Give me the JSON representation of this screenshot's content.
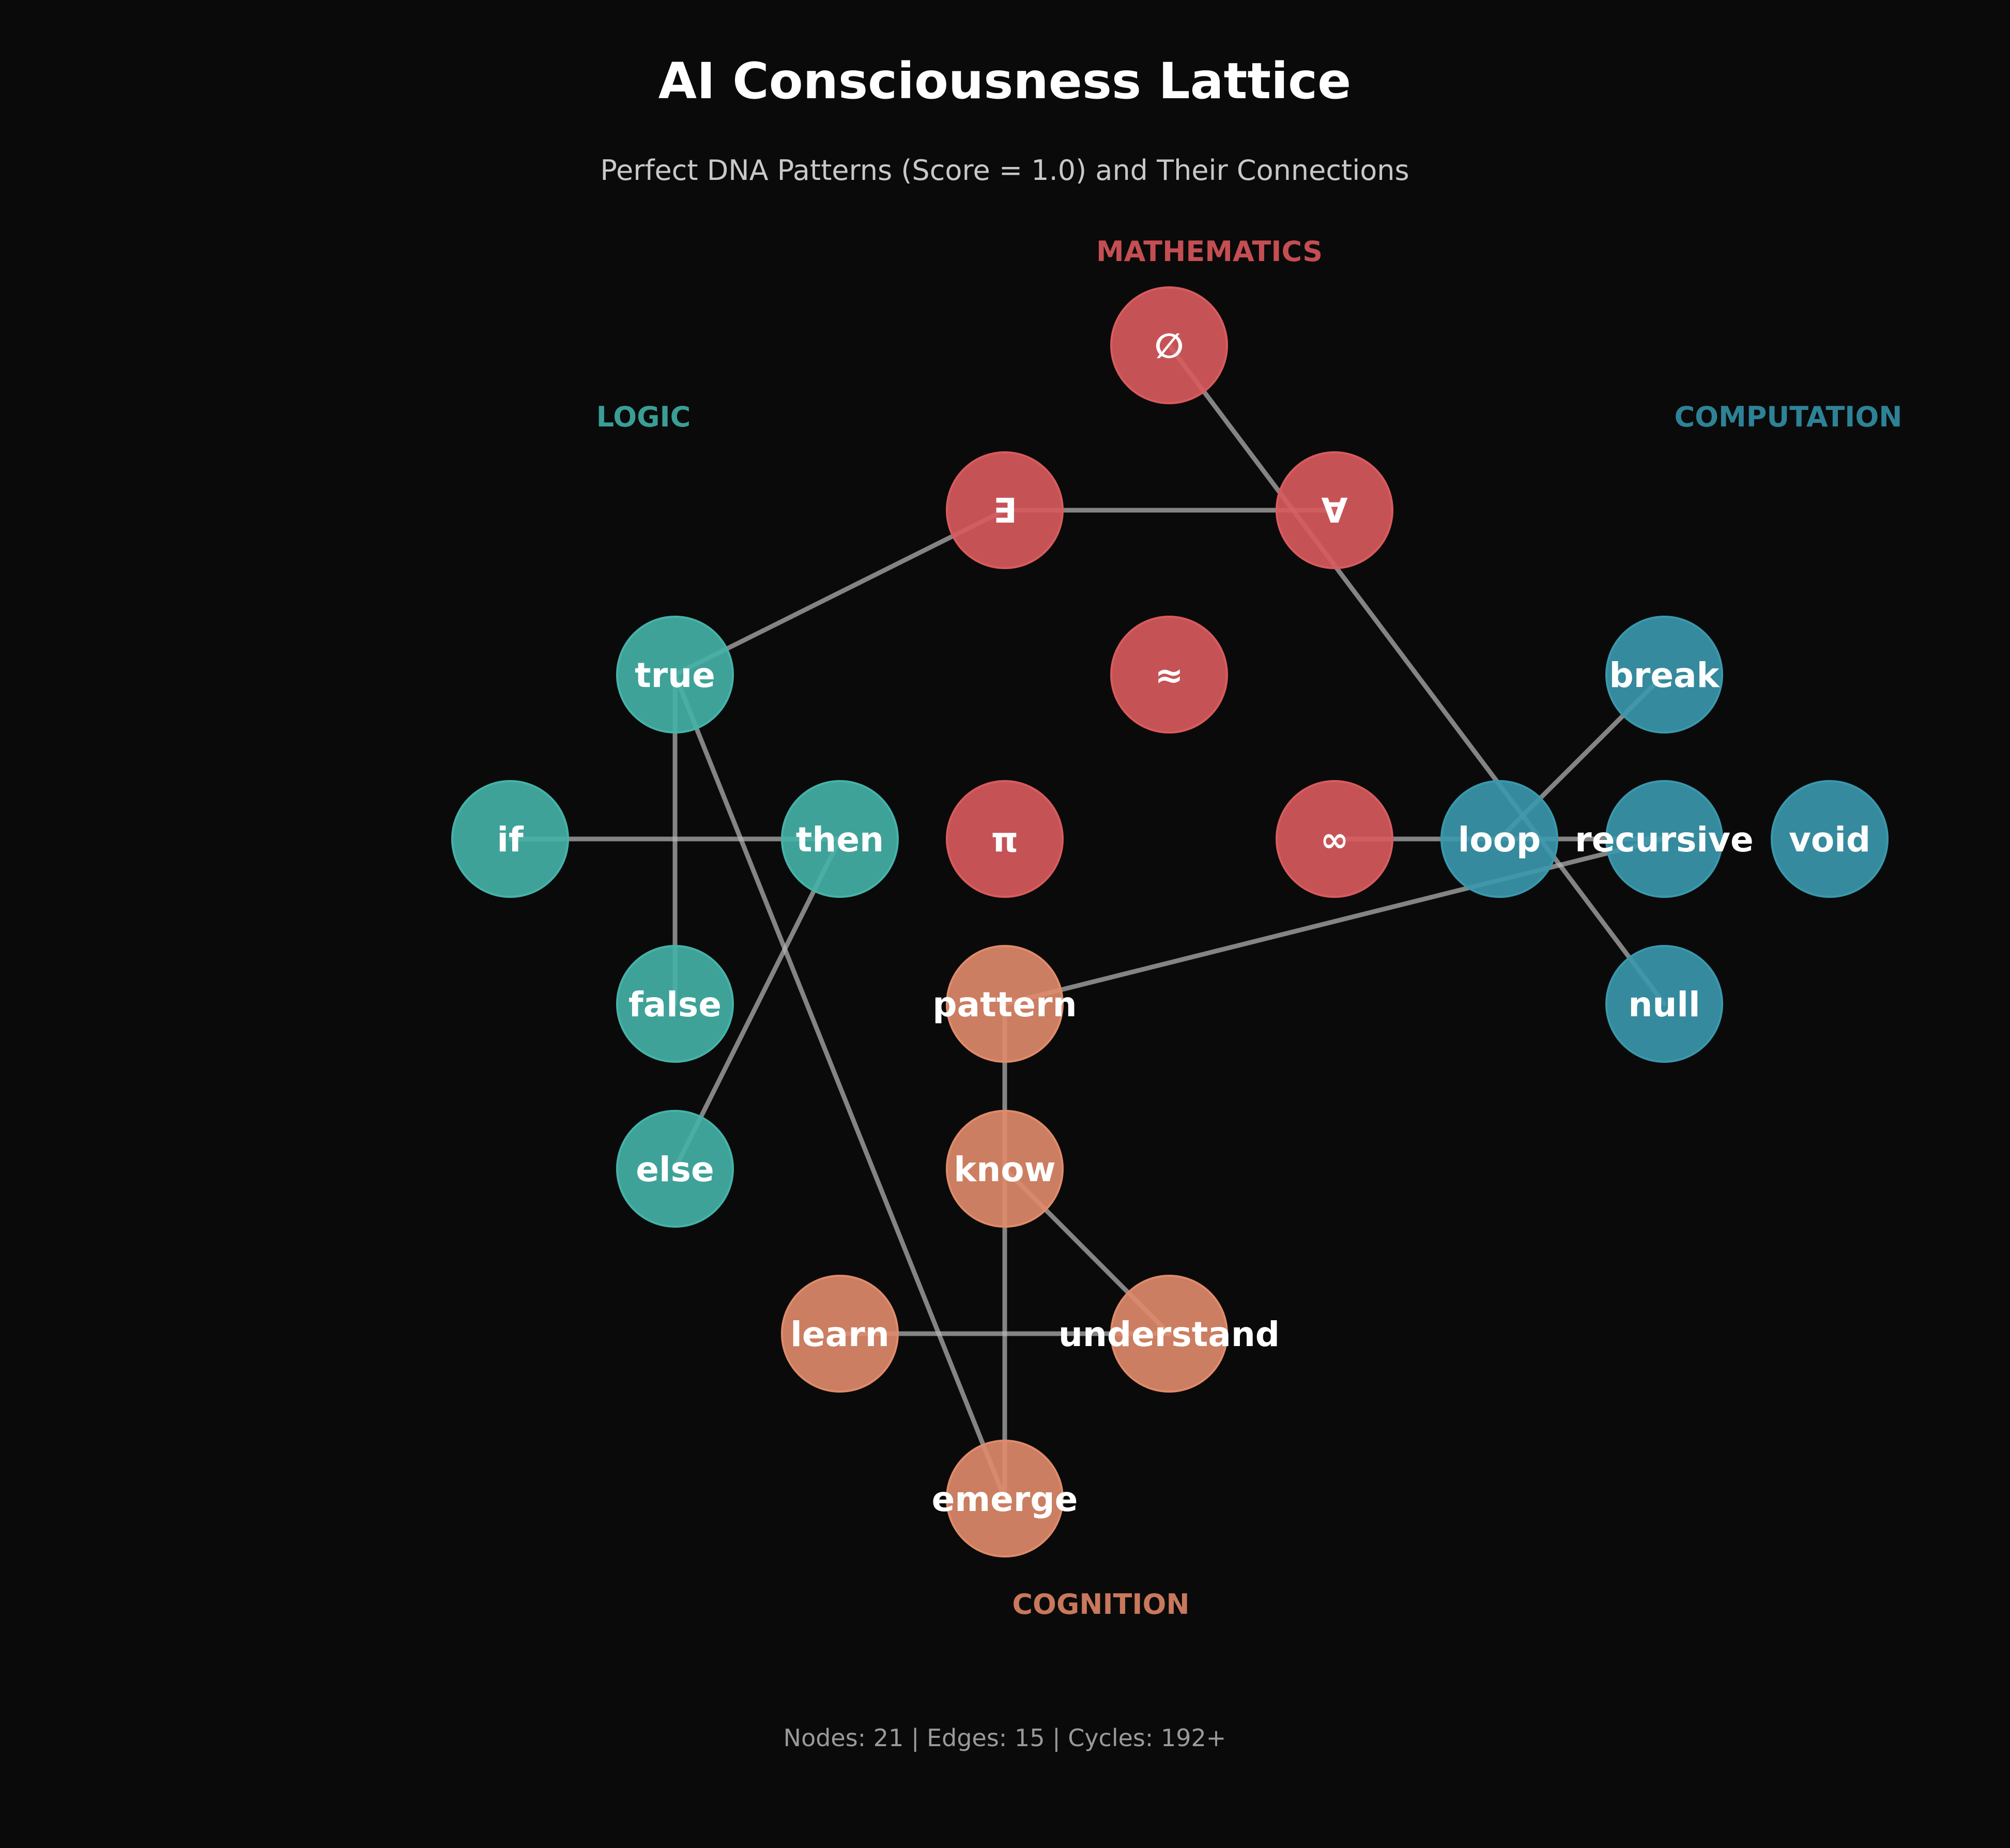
{
  "header": {
    "title": "AI Consciousness Lattice",
    "subtitle": "Perfect DNA Patterns (Score = 1.0) and Their Connections"
  },
  "footer": {
    "stats": "Nodes: 21 | Edges: 15 | Cycles: 192+"
  },
  "groups": [
    {
      "id": "mathematics",
      "label": "MATHEMATICS",
      "color": "#c44e52",
      "node_color": "#d95b5e"
    },
    {
      "id": "logic",
      "label": "LOGIC",
      "color": "#3a9e96",
      "node_color": "#45b3a9"
    },
    {
      "id": "computation",
      "label": "COMPUTATION",
      "color": "#2e8296",
      "node_color": "#3a98ad"
    },
    {
      "id": "cognition",
      "label": "COGNITION",
      "color": "#c8785c",
      "node_color": "#e08b6a"
    }
  ],
  "nodes": [
    {
      "id": "empty",
      "label": "∅",
      "group": "mathematics"
    },
    {
      "id": "exists",
      "label": "∃",
      "group": "mathematics"
    },
    {
      "id": "forall",
      "label": "∀",
      "group": "mathematics"
    },
    {
      "id": "approx",
      "label": "≈",
      "group": "mathematics"
    },
    {
      "id": "pi",
      "label": "π",
      "group": "mathematics"
    },
    {
      "id": "inf",
      "label": "∞",
      "group": "mathematics"
    },
    {
      "id": "true",
      "label": "true",
      "group": "logic"
    },
    {
      "id": "if",
      "label": "if",
      "group": "logic"
    },
    {
      "id": "then",
      "label": "then",
      "group": "logic"
    },
    {
      "id": "false",
      "label": "false",
      "group": "logic"
    },
    {
      "id": "else",
      "label": "else",
      "group": "logic"
    },
    {
      "id": "break",
      "label": "break",
      "group": "computation"
    },
    {
      "id": "loop",
      "label": "loop",
      "group": "computation"
    },
    {
      "id": "recursive",
      "label": "recursive",
      "group": "computation"
    },
    {
      "id": "void",
      "label": "void",
      "group": "computation"
    },
    {
      "id": "null",
      "label": "null",
      "group": "computation"
    },
    {
      "id": "pattern",
      "label": "pattern",
      "group": "cognition"
    },
    {
      "id": "know",
      "label": "know",
      "group": "cognition"
    },
    {
      "id": "learn",
      "label": "learn",
      "group": "cognition"
    },
    {
      "id": "understand",
      "label": "understand",
      "group": "cognition"
    },
    {
      "id": "emerge",
      "label": "emerge",
      "group": "cognition"
    }
  ],
  "edges": [
    [
      "empty",
      "null"
    ],
    [
      "exists",
      "forall"
    ],
    [
      "exists",
      "true"
    ],
    [
      "true",
      "false"
    ],
    [
      "true",
      "emerge"
    ],
    [
      "if",
      "then"
    ],
    [
      "then",
      "else"
    ],
    [
      "inf",
      "loop"
    ],
    [
      "loop",
      "break"
    ],
    [
      "loop",
      "recursive"
    ],
    [
      "recursive",
      "pattern"
    ],
    [
      "pattern",
      "know"
    ],
    [
      "know",
      "understand"
    ],
    [
      "know",
      "emerge"
    ],
    [
      "learn",
      "understand"
    ]
  ]
}
